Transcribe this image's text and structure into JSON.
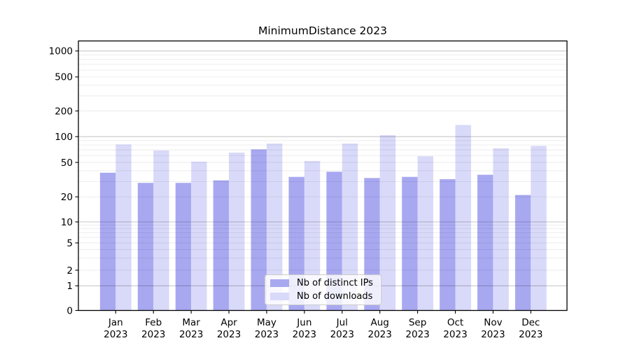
{
  "title": "MinimumDistance 2023",
  "legend": {
    "items": [
      {
        "label": "Nb of distinct IPs",
        "color": "#a8a8f1"
      },
      {
        "label": "Nb of downloads",
        "color": "#d9d9f9"
      }
    ]
  },
  "chart_data": {
    "type": "bar",
    "title": "MinimumDistance 2023",
    "categories": [
      "Jan 2023",
      "Feb 2023",
      "Mar 2023",
      "Apr 2023",
      "May 2023",
      "Jun 2023",
      "Jul 2023",
      "Aug 2023",
      "Sep 2023",
      "Oct 2023",
      "Nov 2023",
      "Dec 2023"
    ],
    "x_tick_line1": [
      "Jan",
      "Feb",
      "Mar",
      "Apr",
      "May",
      "Jun",
      "Jul",
      "Aug",
      "Sep",
      "Oct",
      "Nov",
      "Dec"
    ],
    "x_tick_line2": "2023",
    "series": [
      {
        "name": "Nb of distinct IPs",
        "color": "#a8a8f1",
        "values": [
          38,
          29,
          29,
          31,
          71,
          34,
          39,
          33,
          34,
          32,
          36,
          21
        ]
      },
      {
        "name": "Nb of downloads",
        "color": "#d9d9f9",
        "values": [
          81,
          69,
          51,
          65,
          83,
          52,
          83,
          104,
          59,
          137,
          73,
          78
        ]
      }
    ],
    "yscale": "symlog",
    "yticks": [
      0,
      1,
      2,
      5,
      10,
      20,
      50,
      100,
      200,
      500,
      1000
    ],
    "ylim": [
      0,
      1250
    ],
    "xlabel": "",
    "ylabel": "",
    "grid": {
      "axis": "y",
      "major": true,
      "minor": true
    },
    "legend_position": "lower-center"
  }
}
